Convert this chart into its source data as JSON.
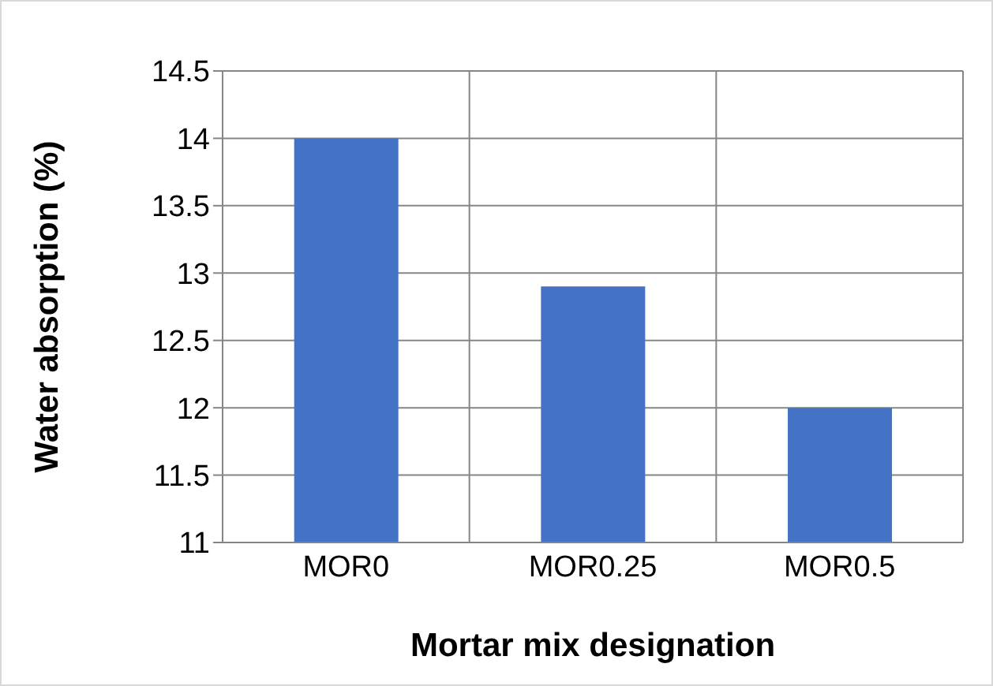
{
  "chart_data": {
    "type": "bar",
    "xlabel": "Mortar mix designation",
    "ylabel": "Water absorption (%)",
    "categories": [
      "MOR0",
      "MOR0.25",
      "MOR0.5"
    ],
    "values": [
      14.0,
      12.9,
      12.0
    ],
    "color": "#4472c4",
    "ylim": [
      11,
      14.5
    ],
    "yticks": [
      11,
      11.5,
      12,
      12.5,
      13,
      13.5,
      14,
      14.5
    ],
    "grid": true
  }
}
